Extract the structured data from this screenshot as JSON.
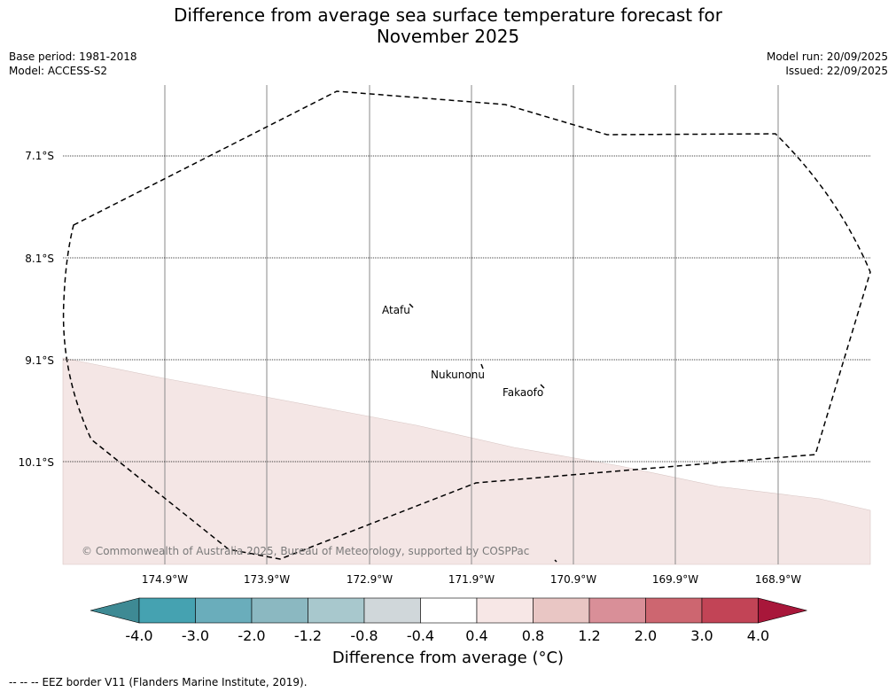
{
  "title": {
    "line1": "Difference from average sea surface temperature forecast for",
    "line2": "November 2025"
  },
  "meta": {
    "base_period": "Base period: 1981-2018",
    "model": "Model: ACCESS-S2",
    "model_run": "Model run: 20/09/2025",
    "issued": "Issued: 22/09/2025"
  },
  "map": {
    "lat_labels": [
      "7.1°S",
      "8.1°S",
      "9.1°S",
      "10.1°S"
    ],
    "lon_labels": [
      "174.9°W",
      "173.9°W",
      "172.9°W",
      "171.9°W",
      "170.9°W",
      "169.9°W",
      "168.9°W"
    ],
    "places": [
      {
        "name": "Atafu"
      },
      {
        "name": "Nukunonu"
      },
      {
        "name": "Fakaofo"
      }
    ],
    "copyright": "© Commonwealth of Australia 2025, Bureau of Meteorology, supported by COSPPac",
    "anomaly_fill_color": "#f4e6e5",
    "border_color": "#000000"
  },
  "colorbar": {
    "title": "Difference from average (°C)",
    "ticks": [
      "-4.0",
      "-3.0",
      "-2.0",
      "-1.2",
      "-0.8",
      "-0.4",
      "0.4",
      "0.8",
      "1.2",
      "2.0",
      "3.0",
      "4.0"
    ],
    "colors": [
      "#3e8a94",
      "#45a2b1",
      "#6aadbb",
      "#8bb8c1",
      "#a8c8cd",
      "#d0d7da",
      "#ffffff",
      "#f7e7e6",
      "#e9c6c4",
      "#d98f98",
      "#cd6670",
      "#c24456",
      "#a8173a"
    ]
  },
  "legend": {
    "symbol": "-- -- --",
    "text": "EEZ border V11 (Flanders Marine Institute, 2019)."
  }
}
